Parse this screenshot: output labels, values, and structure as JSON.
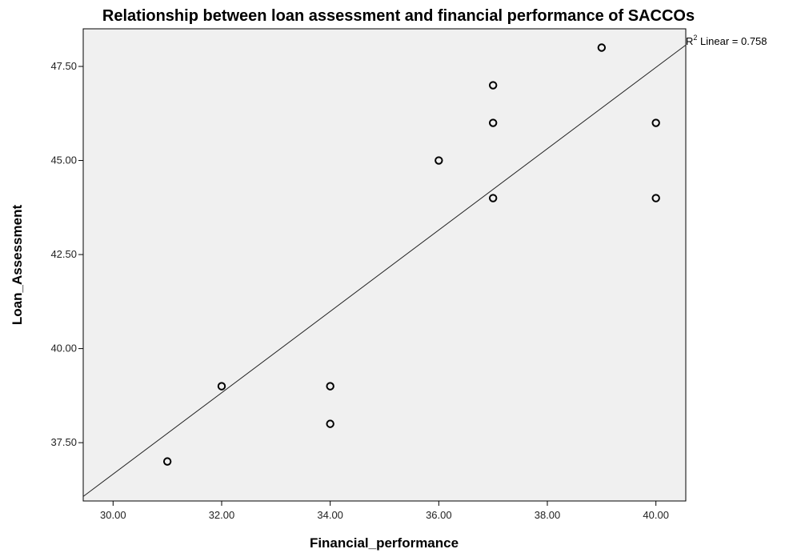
{
  "chart_data": {
    "type": "scatter",
    "title": "Relationship between loan assessment and financial performance of SACCOs",
    "xlabel": "Financial_performance",
    "ylabel": "Loan_Assessment",
    "xlim": [
      29.45,
      40.55
    ],
    "ylim": [
      35.95,
      48.5
    ],
    "xticks": [
      30,
      32,
      34,
      36,
      38,
      40
    ],
    "yticks": [
      37.5,
      40,
      42.5,
      45,
      47.5
    ],
    "xtick_labels": [
      "30.00",
      "32.00",
      "34.00",
      "36.00",
      "38.00",
      "40.00"
    ],
    "ytick_labels": [
      "37.50",
      "40.00",
      "42.50",
      "45.00",
      "47.50"
    ],
    "points": [
      {
        "x": 31,
        "y": 37
      },
      {
        "x": 32,
        "y": 39
      },
      {
        "x": 34,
        "y": 38
      },
      {
        "x": 34,
        "y": 39
      },
      {
        "x": 36,
        "y": 45
      },
      {
        "x": 37,
        "y": 47
      },
      {
        "x": 37,
        "y": 46
      },
      {
        "x": 37,
        "y": 44
      },
      {
        "x": 39,
        "y": 48
      },
      {
        "x": 40,
        "y": 46
      },
      {
        "x": 40,
        "y": 44
      }
    ],
    "fit_line": {
      "x": [
        29.45,
        40.55
      ],
      "y": [
        36.07,
        48.07
      ]
    },
    "fit_label": {
      "prefix": "R",
      "superscript": "2",
      "text": " Linear = 0.758"
    },
    "grid": false,
    "background": "#f0f0f0"
  }
}
